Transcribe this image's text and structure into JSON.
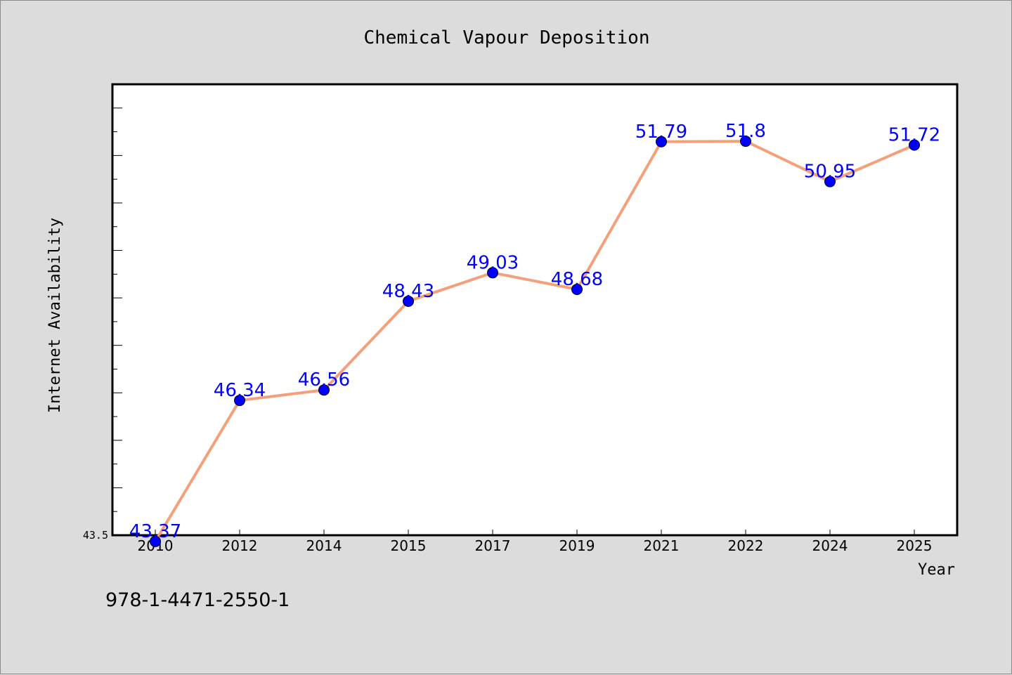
{
  "chart_data": {
    "type": "line",
    "title": "Chemical Vapour Deposition",
    "xlabel": "Year",
    "ylabel": "Internet Availability",
    "categories": [
      "2010",
      "2012",
      "2014",
      "2015",
      "2017",
      "2019",
      "2021",
      "2022",
      "2024",
      "2025"
    ],
    "series": [
      {
        "values": [
          43.37,
          46.34,
          46.56,
          48.43,
          49.03,
          48.68,
          51.79,
          51.8,
          50.95,
          51.72
        ],
        "labels": [
          "43.37",
          "46.34",
          "46.56",
          "48.43",
          "49.03",
          "48.68",
          "51.79",
          "51.8",
          "50.95",
          "51.72"
        ]
      }
    ],
    "ylim": [
      43.5,
      53.0
    ],
    "yticks": [
      "43.5"
    ],
    "grid": false,
    "legend": "none",
    "colors": {
      "line": "#f4a07a",
      "marker": "#0000ff",
      "data_label": "#0000ff",
      "plot_background": "#ffffff",
      "figure_background": "#dcdcdc"
    }
  },
  "footer": {
    "isbn": "978-1-4471-2550-1"
  }
}
